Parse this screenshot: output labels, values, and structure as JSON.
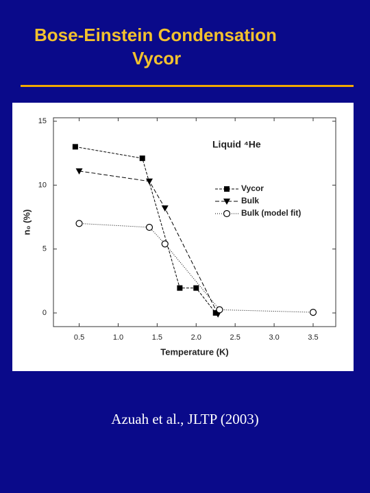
{
  "slide": {
    "title_lines": [
      "Bose-Einstein Condensation",
      "Vycor"
    ],
    "citation": "Azuah et al.,  JLTP (2003)"
  },
  "chart_data": {
    "type": "line",
    "annotation": "Liquid ⁴He",
    "x_label": "Temperature (K)",
    "y_label": "n₀ (%)",
    "xlim": [
      0.17,
      3.79
    ],
    "ylim": [
      -1.07,
      15.27
    ],
    "xticks": [
      0.5,
      {
        "value": 1,
        "label": "1.0"
      },
      1.5,
      {
        "value": 2,
        "label": "2.0"
      },
      2.5,
      {
        "value": 3,
        "label": "3.0"
      },
      3.5
    ],
    "yticks": [
      0,
      5,
      10,
      15
    ],
    "legend": "right",
    "series": [
      {
        "name": "Vycor",
        "color": "#000000",
        "marker": "square",
        "dash": "4,2",
        "x": [
          0.45,
          1.31,
          1.79,
          2.0,
          2.25
        ],
        "values": [
          13.0,
          12.1,
          1.95,
          1.95,
          0
        ]
      },
      {
        "name": "Bulk",
        "color": "#000000",
        "marker": "triangle-down",
        "dash": "6,3",
        "x": [
          0.5,
          1.4,
          1.6,
          2.28
        ],
        "values": [
          11.1,
          10.3,
          8.2,
          -0.1
        ]
      },
      {
        "name": "Bulk (model fit)",
        "color": "#000000",
        "marker": "open-circle",
        "dash": "1,2",
        "x": [
          0.5,
          1.4,
          1.6,
          2.3,
          3.5
        ],
        "values": [
          7.0,
          6.7,
          5.4,
          0.25,
          0.05
        ]
      }
    ]
  }
}
